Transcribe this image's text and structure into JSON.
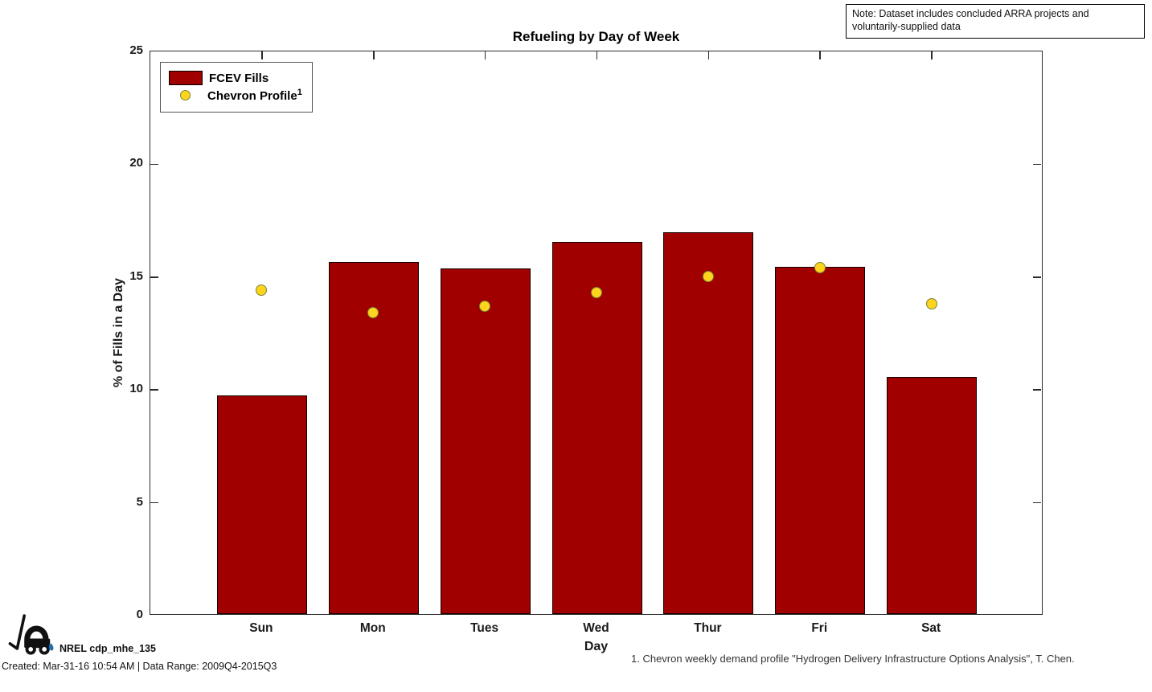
{
  "note": {
    "text": "Note: Dataset includes concluded ARRA projects and voluntarily-supplied data"
  },
  "chart_data": {
    "type": "bar",
    "title": "Refueling by Day of Week",
    "xlabel": "Day",
    "ylabel": "% of Fills in a Day",
    "categories": [
      "Sun",
      "Mon",
      "Tues",
      "Wed",
      "Thur",
      "Fri",
      "Sat"
    ],
    "series": [
      {
        "name": "FCEV Fills",
        "type": "bar",
        "color": "#a00000",
        "edge_color": "#140000",
        "values": [
          9.7,
          15.6,
          15.3,
          16.5,
          16.9,
          15.4,
          10.5
        ]
      },
      {
        "name": "Chevron Profile",
        "type": "scatter",
        "color": "#ffd41e",
        "edge_color": "#77852e",
        "values": [
          14.4,
          13.4,
          13.7,
          14.3,
          15.0,
          15.4,
          13.8
        ]
      }
    ],
    "ylim": [
      0,
      25
    ],
    "yticks": [
      0,
      5,
      10,
      15,
      20,
      25
    ],
    "grid": false,
    "legend_position": "top-left",
    "bar_relative_width": 0.81
  },
  "legend": {
    "items": [
      {
        "label": "FCEV Fills",
        "sup": ""
      },
      {
        "label": "Chevron Profile",
        "sup": "1"
      }
    ]
  },
  "footer": {
    "nrel_label": "NREL cdp_mhe_135",
    "created": "Created: Mar-31-16 10:54 AM | Data Range: 2009Q4-2015Q3",
    "footnote": "1. Chevron weekly demand profile \"Hydrogen Delivery Infrastructure Options Analysis\", T. Chen."
  },
  "colors": {
    "bar_fill": "#a00000",
    "bar_edge": "#140000",
    "dot_fill": "#ffd41e",
    "dot_edge": "#77852e",
    "axis": "#2b2b2b",
    "background": "#ffffff"
  }
}
